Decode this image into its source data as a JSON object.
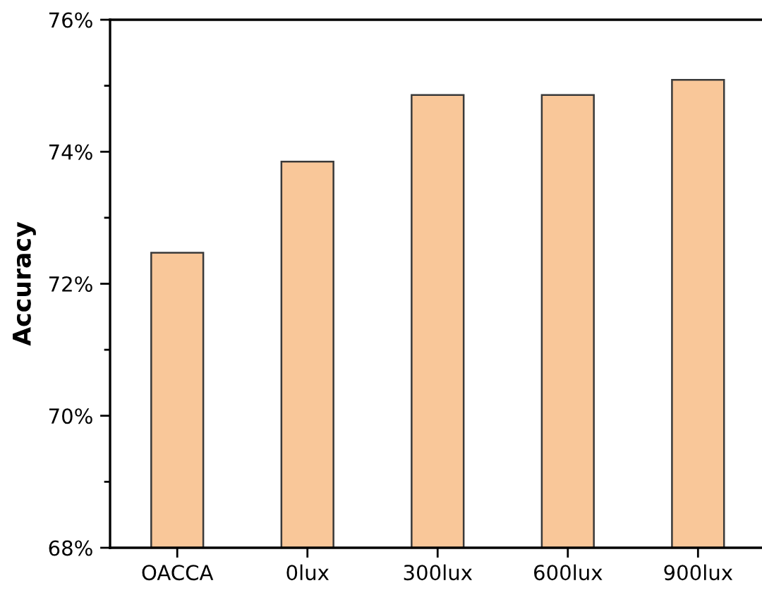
{
  "chart_data": {
    "type": "bar",
    "ylabel": "Accuracy",
    "categories": [
      "OACCA",
      "0lux",
      "300lux",
      "600lux",
      "900lux"
    ],
    "series": [
      {
        "color": "#f9c799",
        "values": [
          72.47,
          73.85,
          74.86,
          74.86,
          75.09
        ]
      }
    ],
    "ylim": [
      68,
      76
    ],
    "yticks": [
      {
        "value": 68,
        "label": "68%"
      },
      {
        "value": 69,
        "label": null
      },
      {
        "value": 70,
        "label": "70%"
      },
      {
        "value": 71,
        "label": null
      },
      {
        "value": 72,
        "label": "72%"
      },
      {
        "value": 73,
        "label": null
      },
      {
        "value": 74,
        "label": "74%"
      },
      {
        "value": 75,
        "label": null
      },
      {
        "value": 76,
        "label": "76%"
      }
    ],
    "grid": false
  }
}
